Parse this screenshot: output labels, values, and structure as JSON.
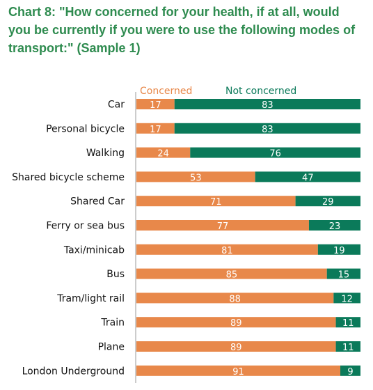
{
  "chart_data": {
    "type": "bar",
    "orientation": "horizontal",
    "stacked": true,
    "title": "Chart 8: \"How concerned for your health, if at all, would you be currently if you were to use the following modes of transport:\" (Sample 1)",
    "categories": [
      "Car",
      "Personal bicycle",
      "Walking",
      "Shared bicycle scheme",
      "Shared Car",
      "Ferry or sea bus",
      "Taxi/minicab",
      "Bus",
      "Tram/light rail",
      "Train",
      "Plane",
      "London Underground"
    ],
    "series": [
      {
        "name": "Concerned",
        "color": "#e8884a",
        "values": [
          17,
          17,
          24,
          53,
          71,
          77,
          81,
          85,
          88,
          89,
          89,
          91
        ]
      },
      {
        "name": "Not concerned",
        "color": "#0b7a5a",
        "values": [
          83,
          83,
          76,
          47,
          29,
          23,
          19,
          15,
          12,
          11,
          11,
          9
        ]
      }
    ],
    "xlim": [
      0,
      100
    ],
    "legend_position": "top",
    "grid": false
  }
}
